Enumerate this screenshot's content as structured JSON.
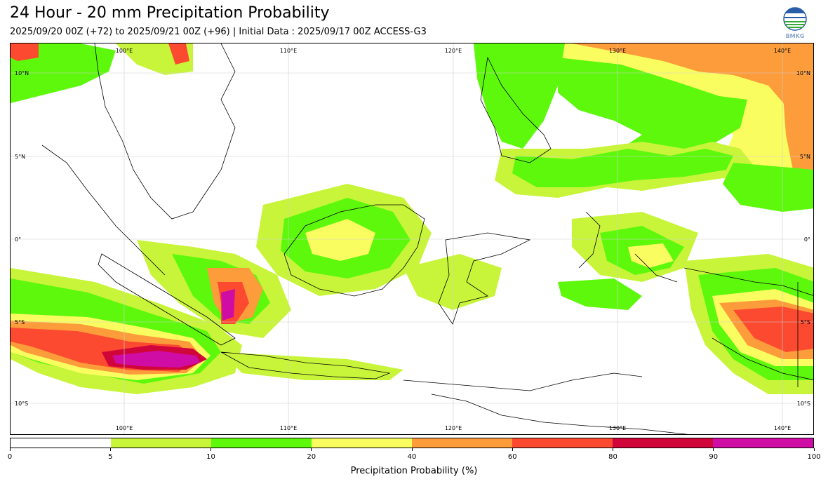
{
  "header": {
    "title": "24 Hour - 20 mm Precipitation Probability",
    "subtitle": "2025/09/20 00Z (+72) to 2025/09/21 00Z (+96) | Initial Data : 2025/09/17 00Z ACCESS-G3",
    "logo_text": "BMKG",
    "logo_icon": "bmkg-logo-icon"
  },
  "map": {
    "lon_labels": [
      "100°E",
      "110°E",
      "120°E",
      "130°E",
      "140°E"
    ],
    "lat_labels_left": [
      "10°N",
      "5°N",
      "0°",
      "5°S",
      "10°S"
    ],
    "lat_labels_right": [
      "10°N",
      "5°N",
      "0°",
      "5°S",
      "10°S"
    ],
    "lon_range": [
      93,
      142
    ],
    "lat_range": [
      -12,
      12
    ],
    "gridlines": true
  },
  "legend": {
    "label": "Precipitation Probability (%)",
    "ticks": [
      "0",
      "5",
      "10",
      "20",
      "40",
      "60",
      "80",
      "90",
      "100"
    ],
    "colors": [
      "#ffffff",
      "#c8f53a",
      "#5ef80c",
      "#fafd60",
      "#fd9c3a",
      "#fc4a30",
      "#d0063a",
      "#cf0ca3"
    ]
  }
}
